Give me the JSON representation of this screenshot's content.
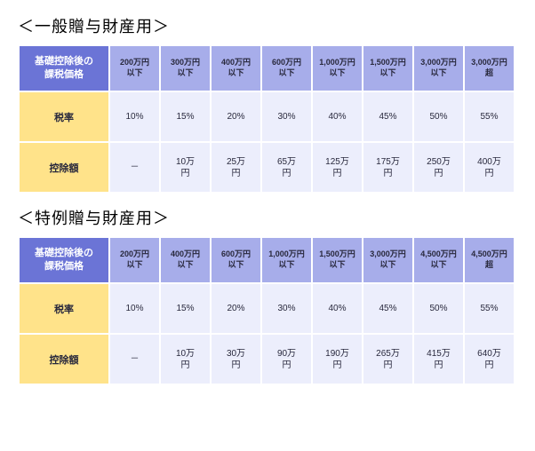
{
  "colors": {
    "header_corner_bg": "#6b74d6",
    "header_col_bg": "#a7adea",
    "row_label_bg": "#ffe38a",
    "cell_bg": "#eceefc",
    "header_corner_text": "#ffffff",
    "header_col_text": "#28283c",
    "row_label_text": "#28283c",
    "cell_text": "#28283c"
  },
  "sections": [
    {
      "title": "＜一般贈与財産用＞",
      "corner": "基礎控除後の\n課税価格",
      "columns": [
        "200万円\n以下",
        "300万円\n以下",
        "400万円\n以下",
        "600万円\n以下",
        "1,000万円\n以下",
        "1,500万円\n以下",
        "3,000万円\n以下",
        "3,000万円\n超"
      ],
      "rows": [
        {
          "label": "税率",
          "cells": [
            "10%",
            "15%",
            "20%",
            "30%",
            "40%",
            "45%",
            "50%",
            "55%"
          ]
        },
        {
          "label": "控除額",
          "cells": [
            "－",
            "10万\n円",
            "25万\n円",
            "65万\n円",
            "125万\n円",
            "175万\n円",
            "250万\n円",
            "400万\n円"
          ]
        }
      ]
    },
    {
      "title": "＜特例贈与財産用＞",
      "corner": "基礎控除後の\n課税価格",
      "columns": [
        "200万円\n以下",
        "400万円\n以下",
        "600万円\n以下",
        "1,000万円\n以下",
        "1,500万円\n以下",
        "3,000万円\n以下",
        "4,500万円\n以下",
        "4,500万円\n超"
      ],
      "rows": [
        {
          "label": "税率",
          "cells": [
            "10%",
            "15%",
            "20%",
            "30%",
            "40%",
            "45%",
            "50%",
            "55%"
          ]
        },
        {
          "label": "控除額",
          "cells": [
            "－",
            "10万\n円",
            "30万\n円",
            "90万\n円",
            "190万\n円",
            "265万\n円",
            "415万\n円",
            "640万\n円"
          ]
        }
      ]
    }
  ]
}
